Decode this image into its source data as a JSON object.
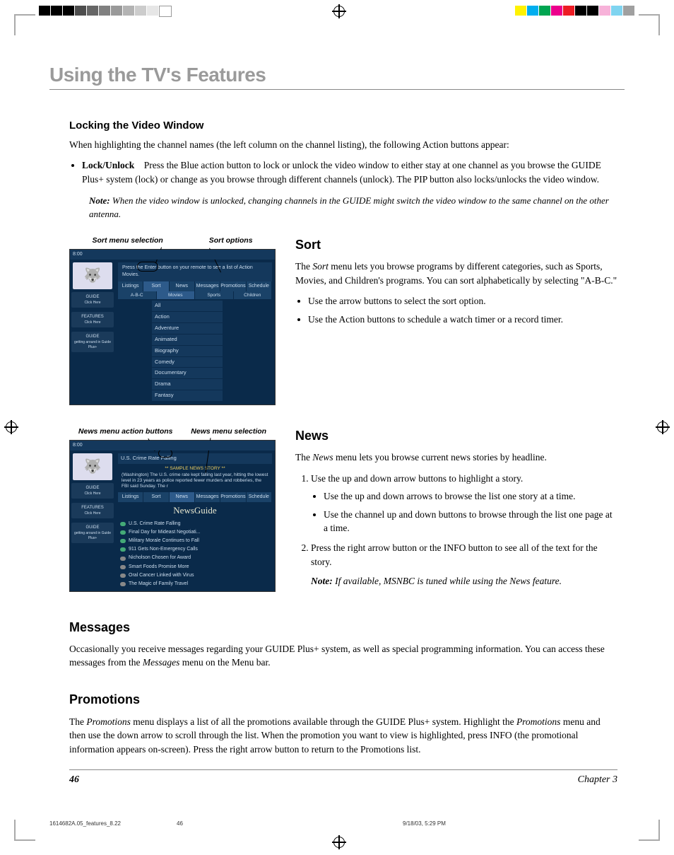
{
  "registration": {
    "left_colors": [
      "#000000",
      "#000000",
      "#000000",
      "#4d4d4d",
      "#666666",
      "#808080",
      "#999999",
      "#b3b3b3",
      "#cccccc",
      "#e6e6e6",
      "#ffffff"
    ],
    "right_colors": [
      "#fff200",
      "#00aeef",
      "#00a551",
      "#ec008c",
      "#ed1c24",
      "#000000",
      "#000000",
      "#f7b2d9",
      "#7fd4f0",
      "#a0a0a0"
    ]
  },
  "chapter_title": "Using the TV's Features",
  "sections": {
    "locking": {
      "heading": "Locking the Video Window",
      "intro": "When highlighting the channel names (the left column on the channel listing), the following Action buttons appear:",
      "bullet_term": "Lock/Unlock",
      "bullet_text": "Press the Blue action button to lock or unlock the video window to either stay at one channel as you browse the GUIDE Plus+ system (lock) or change as you browse through different channels (unlock). The PIP button also locks/unlocks the video window.",
      "note_label": "Note:",
      "note_text": "When the video window is unlocked, changing channels in the GUIDE might switch the video window to the same channel on the other antenna."
    },
    "sort": {
      "heading": "Sort",
      "label_left": "Sort menu selection",
      "label_right": "Sort options",
      "para": "The Sort menu lets you browse programs by different categories, such as Sports, Movies, and Children's programs. You can sort alphabetically by selecting \"A-B-C.\"",
      "bullets": [
        "Use the arrow buttons to select the sort option.",
        "Use the Action buttons to schedule a watch timer or a record timer."
      ],
      "screenshot": {
        "hint": "Press the Enter button on your remote to see a list of Action Movies.",
        "tabs": [
          "Listings",
          "Sort",
          "News",
          "Messages",
          "Promotions",
          "Schedule"
        ],
        "subtabs": [
          "A-B-C",
          "Movies",
          "Sports",
          "Children"
        ],
        "list": [
          "All",
          "Action",
          "Adventure",
          "Animated",
          "Biography",
          "Comedy",
          "Documentary",
          "Drama",
          "Fantasy"
        ],
        "side": [
          "GUIDE",
          "FEATURES",
          "GUIDE"
        ],
        "side_text": [
          "Click Here",
          "getting around in Guide Plus+",
          "Click Here"
        ]
      }
    },
    "news": {
      "heading": "News",
      "label_left": "News menu action buttons",
      "label_right": "News menu selection",
      "para": "The News menu lets you browse current news stories by headline.",
      "steps": [
        "Use the up and down arrow buttons to highlight a story.",
        "Press the right arrow button or the INFO button to see all of the text for the story."
      ],
      "sub_bullets": [
        "Use the up and down arrows to browse the list one story at a time.",
        "Use the channel up and down buttons to browse through the list one page at a time."
      ],
      "note_label": "Note:",
      "note_text": "If available, MSNBC is tuned while using the News feature.",
      "screenshot": {
        "headline": "U.S. Crime Rate Falling",
        "sub": "** SAMPLE NEWS STORY **",
        "body": "(Washington)  The U.S. crime rate kept falling last year, hitting the lowest level in 23 years as police reported fewer murders and robberies, the FBI said Sunday. The r",
        "tabs": [
          "Listings",
          "Sort",
          "News",
          "Messages",
          "Promotions",
          "Schedule"
        ],
        "brand": "NewsGuide",
        "list": [
          "U.S. Crime Rate Falling",
          "Final Day for Mideast Negotiati...",
          "Military Morale Continues to Fall",
          "911 Gets Non-Emergency Calls",
          "Nicholson Chosen for Award",
          "Smart Foods Promise More",
          "Oral Cancer Linked with Virus",
          "The Magic of Family Travel"
        ]
      }
    },
    "messages": {
      "heading": "Messages",
      "para": "Occasionally you receive messages regarding your GUIDE Plus+ system, as well as special programming information. You can access these messages from the Messages menu on the Menu bar."
    },
    "promotions": {
      "heading": "Promotions",
      "para": "The Promotions menu displays a list of all the promotions available through the GUIDE Plus+ system. Highlight the Promotions menu and then use the down arrow to scroll through the list. When the promotion you want to view is highlighted, press INFO (the promotional information appears on-screen). Press the right arrow button to return to the Promotions list."
    }
  },
  "footer": {
    "page": "46",
    "chapter": "Chapter 3"
  },
  "meta": {
    "file": "1614682A.05_features_8.22",
    "pg": "46",
    "date": "9/18/03, 5:29 PM"
  }
}
